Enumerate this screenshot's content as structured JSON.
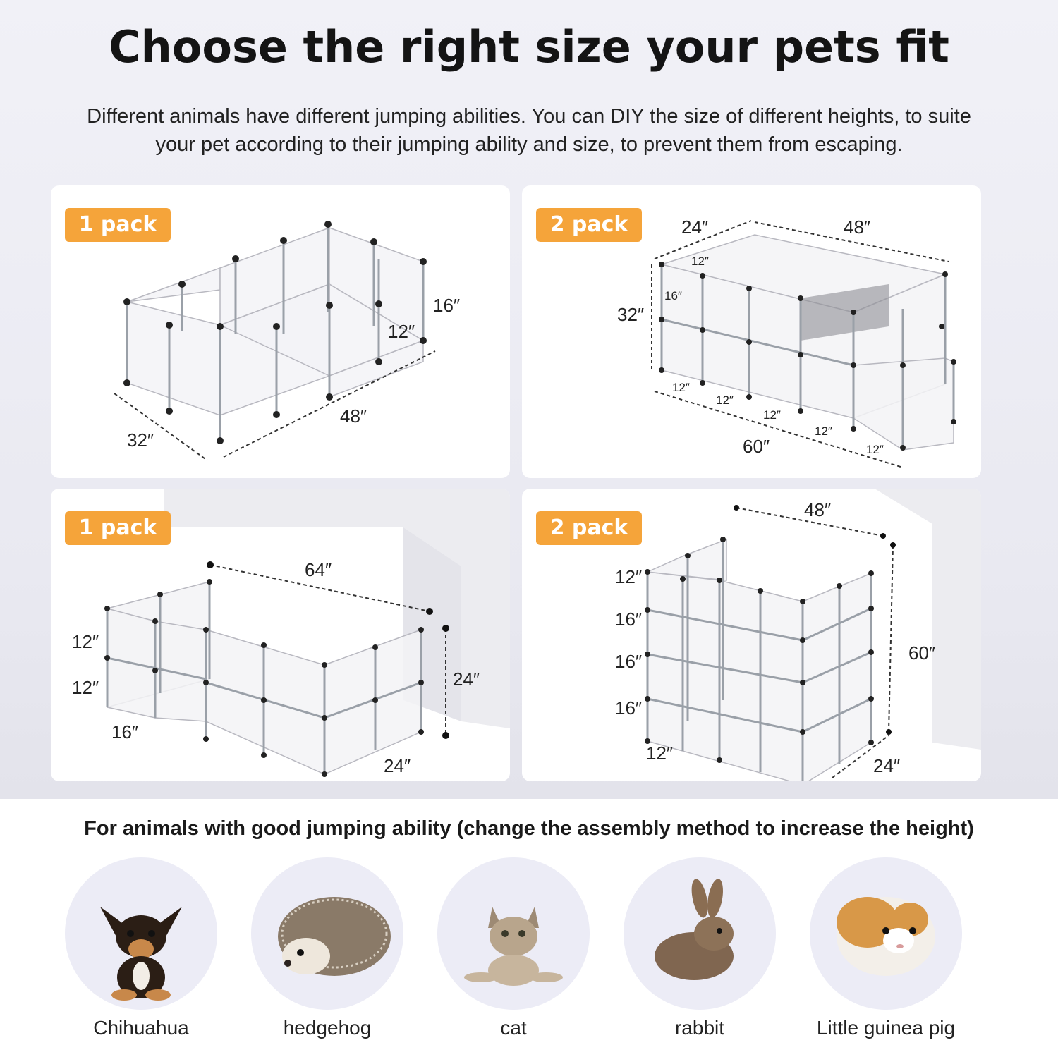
{
  "header": {
    "title": "Choose the right size your pets fit",
    "subtitle_line1": "Different animals have different jumping abilities. You can DIY the size of different heights, to suite",
    "subtitle_line2": "your pet according to their jumping ability and size, to prevent them from escaping."
  },
  "colors": {
    "badge": "#f5a43a",
    "card": "#ffffff",
    "panel": "#ececf6"
  },
  "cards": [
    {
      "pack": "1 pack",
      "dims": {
        "height_outer": "16″",
        "height_inner": "12″",
        "length": "48″",
        "width": "32″"
      }
    },
    {
      "pack": "2 pack",
      "dims": {
        "depth": "24″",
        "length_top": "48″",
        "height": "32″",
        "row_top": "12″",
        "row_side": "16″",
        "bottom": [
          "12″",
          "12″",
          "12″",
          "12″",
          "12″"
        ],
        "length_bottom": "60″"
      }
    },
    {
      "pack": "1 pack",
      "dims": {
        "length": "64″",
        "tier1": "12″",
        "tier2": "12″",
        "depth": "16″",
        "height": "24″",
        "width": "24″"
      }
    },
    {
      "pack": "2 pack",
      "dims": {
        "length": "48″",
        "t1": "12″",
        "t2": "16″",
        "t3": "16″",
        "t4": "16″",
        "base": "12″",
        "height": "60″",
        "depth": "24″"
      }
    }
  ],
  "bottom": {
    "title": "For animals with good jumping ability (change the assembly method to increase the height)",
    "animals": [
      {
        "name": "Chihuahua",
        "icon": "chihuahua-photo"
      },
      {
        "name": "hedgehog",
        "icon": "hedgehog-photo"
      },
      {
        "name": "cat",
        "icon": "cat-photo"
      },
      {
        "name": "rabbit",
        "icon": "rabbit-photo"
      },
      {
        "name": "Little guinea pig",
        "icon": "guinea-pig-photo"
      }
    ]
  }
}
